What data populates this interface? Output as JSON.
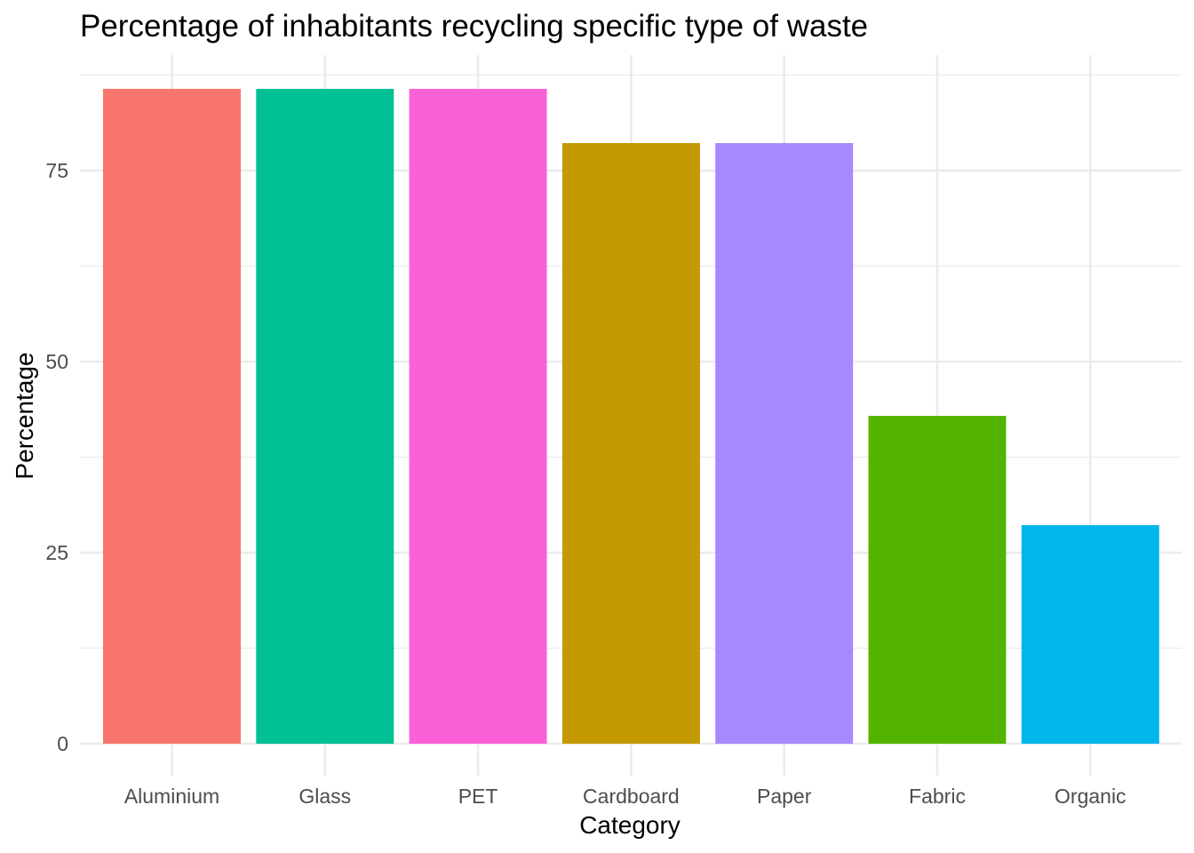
{
  "chart_data": {
    "type": "bar",
    "title": "Percentage of inhabitants recycling specific type of waste",
    "xlabel": "Category",
    "ylabel": "Percentage",
    "categories": [
      "Aluminium",
      "Glass",
      "PET",
      "Cardboard",
      "Paper",
      "Fabric",
      "Organic"
    ],
    "values": [
      85.7,
      85.7,
      85.7,
      78.6,
      78.6,
      42.9,
      28.6
    ],
    "colors": [
      "#F8766D",
      "#00C094",
      "#FB61D7",
      "#C49A00",
      "#A58AFF",
      "#53B400",
      "#00B6EB"
    ],
    "ylim": [
      0,
      88
    ],
    "yticks": [
      0,
      25,
      50,
      75
    ],
    "ytick_labels": [
      "0",
      "25",
      "50",
      "75"
    ],
    "grid": true,
    "legend": "none"
  }
}
